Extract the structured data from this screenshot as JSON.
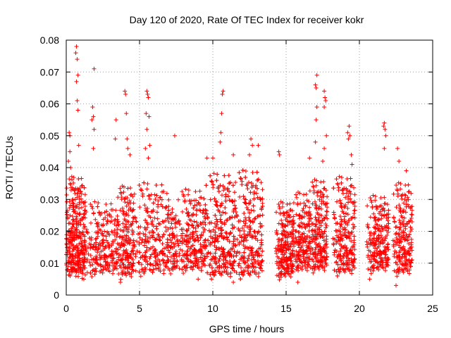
{
  "chart_data": {
    "type": "scatter",
    "title": "Day 120 of 2020, Rate Of TEC Index for receiver kokr",
    "xlabel": "GPS time / hours",
    "ylabel": "ROTI / TECUs",
    "xlim": [
      0,
      25
    ],
    "ylim": [
      0,
      0.08
    ],
    "x_ticks": [
      "0",
      "5",
      "10",
      "15",
      "20",
      "25"
    ],
    "y_ticks": [
      "0",
      "0.01",
      "0.02",
      "0.03",
      "0.04",
      "0.05",
      "0.06",
      "0.07",
      "0.08"
    ],
    "grid": true,
    "legend": "none",
    "marker": "+",
    "color": "#ff0000",
    "series": [
      {
        "points": [
          [
            0.7,
            0.078
          ],
          [
            0.65,
            0.076
          ],
          [
            0.75,
            0.074
          ],
          [
            0.8,
            0.069
          ],
          [
            0.7,
            0.067
          ],
          [
            0.75,
            0.061
          ],
          [
            0.8,
            0.058
          ],
          [
            0.2,
            0.051
          ],
          [
            0.25,
            0.05
          ],
          [
            0.85,
            0.047
          ],
          [
            0.25,
            0.045
          ],
          [
            0.15,
            0.042
          ],
          [
            0.3,
            0.04
          ],
          [
            1.9,
            0.071
          ],
          [
            1.8,
            0.059
          ],
          [
            1.85,
            0.056
          ],
          [
            1.75,
            0.055
          ],
          [
            1.9,
            0.052
          ],
          [
            1.85,
            0.046
          ],
          [
            3.4,
            0.055
          ],
          [
            3.35,
            0.049
          ],
          [
            4.0,
            0.064
          ],
          [
            4.05,
            0.063
          ],
          [
            4.1,
            0.057
          ],
          [
            4.15,
            0.049
          ],
          [
            4.2,
            0.046
          ],
          [
            4.35,
            0.044
          ],
          [
            5.5,
            0.064
          ],
          [
            5.55,
            0.063
          ],
          [
            5.6,
            0.062
          ],
          [
            5.45,
            0.057
          ],
          [
            5.65,
            0.056
          ],
          [
            5.5,
            0.052
          ],
          [
            5.4,
            0.046
          ],
          [
            5.7,
            0.047
          ],
          [
            5.6,
            0.043
          ],
          [
            7.4,
            0.05
          ],
          [
            9.6,
            0.043
          ],
          [
            10.0,
            0.043
          ],
          [
            10.7,
            0.064
          ],
          [
            10.65,
            0.063
          ],
          [
            10.6,
            0.057
          ],
          [
            10.55,
            0.051
          ],
          [
            10.5,
            0.048
          ],
          [
            11.4,
            0.044
          ],
          [
            12.6,
            0.049
          ],
          [
            12.7,
            0.047
          ],
          [
            13.1,
            0.047
          ],
          [
            12.5,
            0.044
          ],
          [
            14.5,
            0.045
          ],
          [
            14.55,
            0.044
          ],
          [
            16.6,
            0.043
          ],
          [
            17.1,
            0.069
          ],
          [
            17.0,
            0.066
          ],
          [
            17.05,
            0.065
          ],
          [
            17.1,
            0.059
          ],
          [
            17.05,
            0.055
          ],
          [
            17.0,
            0.048
          ],
          [
            17.6,
            0.064
          ],
          [
            17.65,
            0.062
          ],
          [
            17.7,
            0.061
          ],
          [
            17.6,
            0.059
          ],
          [
            17.75,
            0.05
          ],
          [
            17.6,
            0.046
          ],
          [
            17.5,
            0.042
          ],
          [
            19.3,
            0.053
          ],
          [
            19.2,
            0.051
          ],
          [
            19.35,
            0.05
          ],
          [
            19.25,
            0.049
          ],
          [
            19.45,
            0.044
          ],
          [
            19.5,
            0.041
          ],
          [
            21.7,
            0.054
          ],
          [
            21.65,
            0.053
          ],
          [
            21.75,
            0.052
          ],
          [
            21.8,
            0.05
          ],
          [
            21.7,
            0.046
          ],
          [
            22.6,
            0.046
          ],
          [
            22.7,
            0.042
          ],
          [
            23.2,
            0.039
          ],
          [
            22.5,
            0.003
          ],
          [
            15.8,
            0.004
          ],
          [
            11.4,
            0.004
          ],
          [
            3.7,
            0.004
          ],
          [
            20.7,
            0.005
          ],
          [
            9.0,
            0.005
          ],
          [
            1.2,
            0.005
          ]
        ],
        "clusters": [
          {
            "x_start": 0.0,
            "x_end": 1.3,
            "y_min": 0.005,
            "y_max": 0.038,
            "count": 340
          },
          {
            "x_start": 1.3,
            "x_end": 3.5,
            "y_min": 0.005,
            "y_max": 0.03,
            "count": 260
          },
          {
            "x_start": 3.5,
            "x_end": 4.6,
            "y_min": 0.004,
            "y_max": 0.035,
            "count": 180
          },
          {
            "x_start": 4.6,
            "x_end": 7.0,
            "y_min": 0.005,
            "y_max": 0.036,
            "count": 330
          },
          {
            "x_start": 7.0,
            "x_end": 7.6,
            "y_min": 0.006,
            "y_max": 0.028,
            "count": 70
          },
          {
            "x_start": 7.6,
            "x_end": 9.5,
            "y_min": 0.006,
            "y_max": 0.034,
            "count": 320
          },
          {
            "x_start": 9.5,
            "x_end": 11.5,
            "y_min": 0.004,
            "y_max": 0.039,
            "count": 420
          },
          {
            "x_start": 11.5,
            "x_end": 13.4,
            "y_min": 0.004,
            "y_max": 0.04,
            "count": 340
          },
          {
            "x_start": 14.3,
            "x_end": 15.5,
            "y_min": 0.004,
            "y_max": 0.03,
            "count": 220
          },
          {
            "x_start": 15.5,
            "x_end": 16.6,
            "y_min": 0.006,
            "y_max": 0.033,
            "count": 170
          },
          {
            "x_start": 16.6,
            "x_end": 17.8,
            "y_min": 0.006,
            "y_max": 0.037,
            "count": 230
          },
          {
            "x_start": 18.2,
            "x_end": 19.7,
            "y_min": 0.005,
            "y_max": 0.038,
            "count": 290
          },
          {
            "x_start": 20.5,
            "x_end": 22.0,
            "y_min": 0.006,
            "y_max": 0.032,
            "count": 230
          },
          {
            "x_start": 22.3,
            "x_end": 23.6,
            "y_min": 0.005,
            "y_max": 0.036,
            "count": 210
          }
        ]
      }
    ]
  }
}
